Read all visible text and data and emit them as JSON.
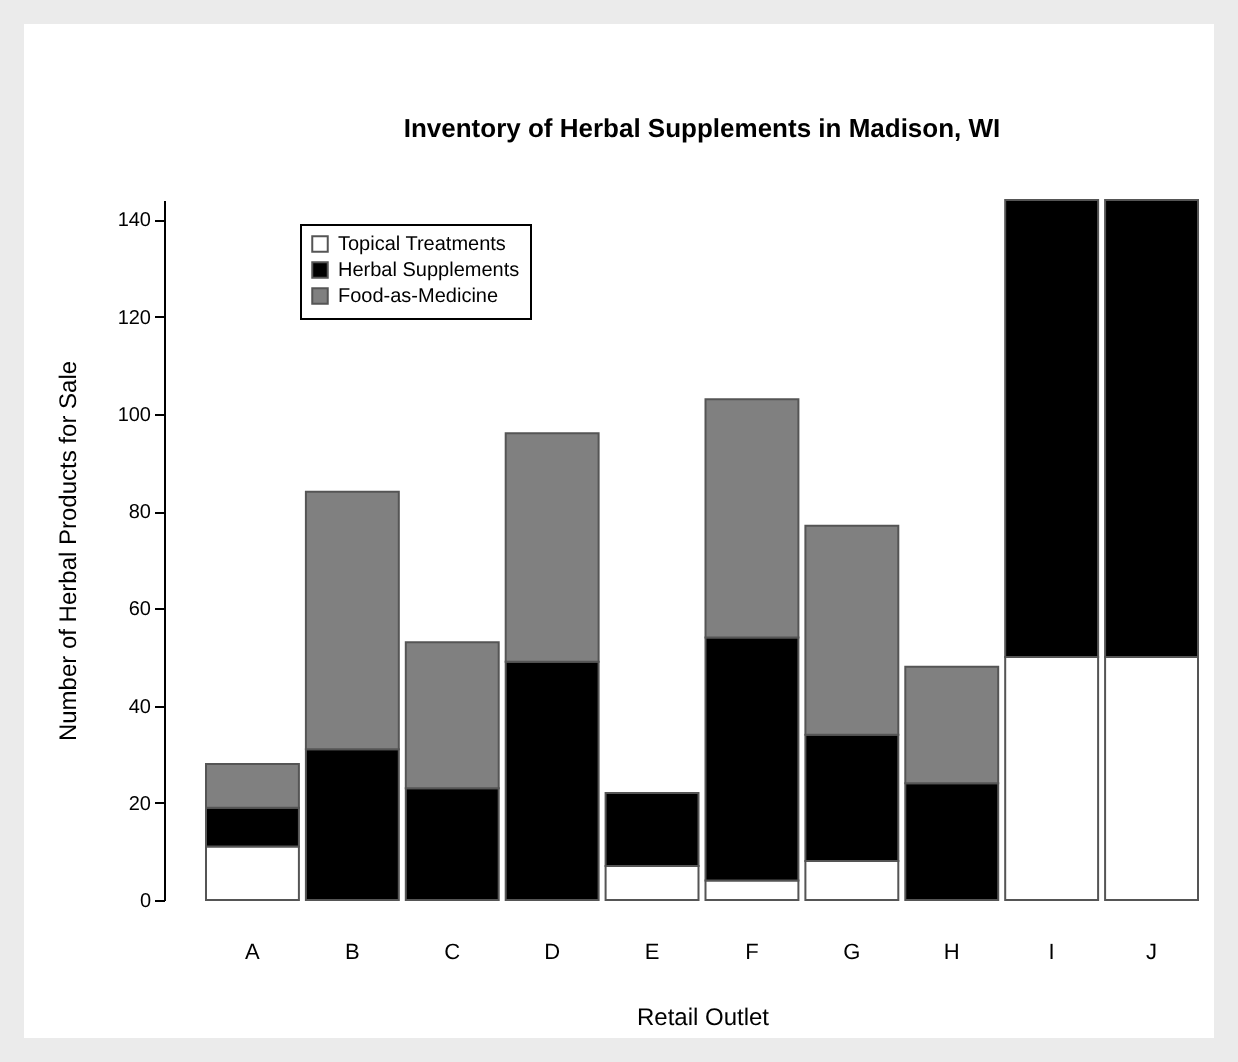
{
  "chart_data": {
    "type": "bar",
    "title": "Inventory of Herbal Supplements in Madison, WI",
    "xlabel": "Retail Outlet",
    "ylabel": "Number of Herbal Products for Sale",
    "categories": [
      "A",
      "B",
      "C",
      "D",
      "E",
      "F",
      "G",
      "H",
      "I",
      "J"
    ],
    "stacked": true,
    "ylim": [
      0,
      144
    ],
    "yticks": [
      0,
      20,
      40,
      60,
      80,
      100,
      120,
      140
    ],
    "grid": false,
    "legend": "top left",
    "series": [
      {
        "name": "Topical Treatments",
        "color": "#ffffff",
        "values": [
          11,
          0,
          0,
          0,
          7,
          4,
          8,
          0,
          50,
          50
        ]
      },
      {
        "name": "Herbal Supplements",
        "color": "#000000",
        "values": [
          8,
          31,
          23,
          49,
          15,
          50,
          26,
          24,
          94,
          94
        ]
      },
      {
        "name": "Food-as-Medicine",
        "color": "#808080",
        "values": [
          9,
          53,
          30,
          47,
          0,
          49,
          43,
          24,
          0,
          0
        ]
      }
    ]
  }
}
